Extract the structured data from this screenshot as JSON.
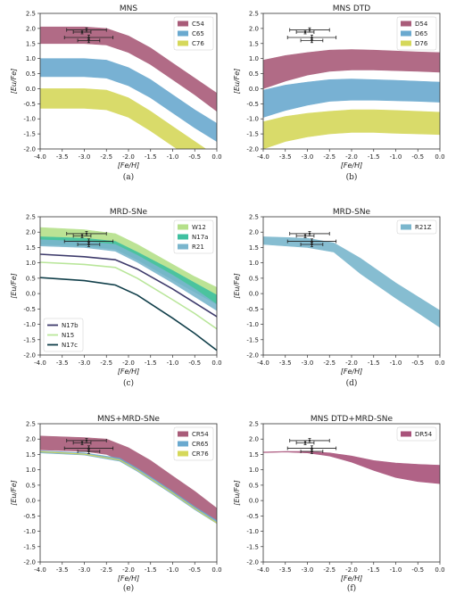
{
  "figure": {
    "panels": [
      {
        "label": "(a)",
        "title": "MNS"
      },
      {
        "label": "(b)",
        "title": "MNS DTD"
      },
      {
        "label": "(c)",
        "title": "MRD-SNe"
      },
      {
        "label": "(d)",
        "title": "MRD-SNe"
      },
      {
        "label": "(e)",
        "title": "MNS+MRD-SNe"
      },
      {
        "label": "(f)",
        "title": "MNS DTD+MRD-SNe"
      }
    ],
    "colors": {
      "maroon": "#a95c79",
      "blue": "#6aa9cf",
      "yellow": "#d5d85a",
      "lightgreen": "#b5e08a",
      "teal": "#3fc0a0",
      "steel": "#7ab6cd",
      "navy": "#3d3a6b",
      "palegreen": "#b9e69a",
      "darkteal": "#113f4a",
      "dr": "#a8527a"
    }
  },
  "chart_data": [
    {
      "type": "area",
      "title": "MNS",
      "xlabel": "[Fe/H]",
      "ylabel": "[Eu/Fe]",
      "xlim": [
        -4.0,
        0.0
      ],
      "ylim": [
        -2.0,
        2.5
      ],
      "xticks": [
        "-4.0",
        "-3.5",
        "-3.0",
        "-2.5",
        "-2.0",
        "-1.5",
        "-1.0",
        "-0.5",
        "0.0"
      ],
      "yticks": [
        "-2.0",
        "-1.5",
        "-1.0",
        "-0.5",
        "0.0",
        "0.5",
        "1.0",
        "1.5",
        "2.0",
        "2.5"
      ],
      "legend": "top-right",
      "bands": [
        {
          "name": "C54",
          "color": "maroon",
          "x": [
            -4.0,
            -3.0,
            -2.5,
            -2.0,
            -1.5,
            -1.0,
            -0.5,
            0.0
          ],
          "upper": [
            2.05,
            2.05,
            2.0,
            1.75,
            1.35,
            0.85,
            0.35,
            -0.15
          ],
          "lower": [
            1.5,
            1.5,
            1.45,
            1.2,
            0.8,
            0.3,
            -0.2,
            -0.75
          ]
        },
        {
          "name": "C65",
          "color": "blue",
          "x": [
            -4.0,
            -3.0,
            -2.5,
            -2.0,
            -1.5,
            -1.0,
            -0.5,
            0.0
          ],
          "upper": [
            1.0,
            1.0,
            0.95,
            0.7,
            0.3,
            -0.2,
            -0.7,
            -1.15
          ],
          "lower": [
            0.4,
            0.4,
            0.35,
            0.1,
            -0.3,
            -0.8,
            -1.3,
            -1.75
          ]
        },
        {
          "name": "C76",
          "color": "yellow",
          "x": [
            -4.0,
            -3.0,
            -2.5,
            -2.0,
            -1.5,
            -1.0,
            -0.5,
            0.0
          ],
          "upper": [
            0.0,
            0.0,
            -0.05,
            -0.3,
            -0.75,
            -1.25,
            -1.75,
            -2.25
          ],
          "lower": [
            -0.65,
            -0.65,
            -0.7,
            -0.95,
            -1.4,
            -1.9,
            -2.4,
            -2.9
          ]
        }
      ],
      "lines": [],
      "observations": [
        {
          "x": -2.95,
          "y": 1.95,
          "xerr": 0.45,
          "yerr": 0.07
        },
        {
          "x": -3.05,
          "y": 1.88,
          "xerr": 0.2,
          "yerr": 0.06
        },
        {
          "x": -2.9,
          "y": 1.7,
          "xerr": 0.55,
          "yerr": 0.08
        },
        {
          "x": -2.9,
          "y": 1.6,
          "xerr": 0.25,
          "yerr": 0.07
        }
      ]
    },
    {
      "type": "area",
      "title": "MNS DTD",
      "xlabel": "[Fe/H]",
      "ylabel": "[Eu/Fe]",
      "xlim": [
        -4.0,
        0.0
      ],
      "ylim": [
        -2.0,
        2.5
      ],
      "xticks": [
        "-4.0",
        "-3.5",
        "-3.0",
        "-2.5",
        "-2.0",
        "-1.5",
        "-1.0",
        "-0.5",
        "0.0"
      ],
      "yticks": [
        "-2.0",
        "-1.5",
        "-1.0",
        "-0.5",
        "0.0",
        "0.5",
        "1.0",
        "1.5",
        "2.0",
        "2.5"
      ],
      "legend": "top-right",
      "bands": [
        {
          "name": "D54",
          "color": "maroon",
          "x": [
            -4.0,
            -3.5,
            -3.0,
            -2.5,
            -2.0,
            -1.5,
            -1.0,
            -0.5,
            0.0
          ],
          "upper": [
            0.95,
            1.1,
            1.2,
            1.28,
            1.3,
            1.28,
            1.25,
            1.22,
            1.2
          ],
          "lower": [
            0.0,
            0.25,
            0.45,
            0.58,
            0.62,
            0.62,
            0.6,
            0.58,
            0.55
          ]
        },
        {
          "name": "D65",
          "color": "blue",
          "x": [
            -4.0,
            -3.5,
            -3.0,
            -2.5,
            -2.0,
            -1.5,
            -1.0,
            -0.5,
            0.0
          ],
          "upper": [
            -0.05,
            0.12,
            0.22,
            0.3,
            0.32,
            0.3,
            0.28,
            0.25,
            0.22
          ],
          "lower": [
            -0.95,
            -0.72,
            -0.55,
            -0.42,
            -0.38,
            -0.38,
            -0.4,
            -0.42,
            -0.45
          ]
        },
        {
          "name": "D76",
          "color": "yellow",
          "x": [
            -4.0,
            -3.5,
            -3.0,
            -2.5,
            -2.0,
            -1.5,
            -1.0,
            -0.5,
            0.0
          ],
          "upper": [
            -1.1,
            -0.92,
            -0.82,
            -0.75,
            -0.7,
            -0.7,
            -0.72,
            -0.75,
            -0.78
          ],
          "lower": [
            -2.0,
            -1.75,
            -1.6,
            -1.5,
            -1.45,
            -1.45,
            -1.48,
            -1.5,
            -1.52
          ]
        }
      ],
      "lines": [],
      "observations": [
        {
          "x": -2.95,
          "y": 1.95,
          "xerr": 0.45,
          "yerr": 0.07
        },
        {
          "x": -3.05,
          "y": 1.88,
          "xerr": 0.2,
          "yerr": 0.06
        },
        {
          "x": -2.9,
          "y": 1.7,
          "xerr": 0.55,
          "yerr": 0.08
        },
        {
          "x": -2.9,
          "y": 1.6,
          "xerr": 0.25,
          "yerr": 0.07
        }
      ]
    },
    {
      "type": "area",
      "title": "MRD-SNe",
      "xlabel": "[Fe/H]",
      "ylabel": "[Eu/Fe]",
      "xlim": [
        -4.0,
        0.0
      ],
      "ylim": [
        -2.0,
        2.5
      ],
      "xticks": [
        "-4.0",
        "-3.5",
        "-3.0",
        "-2.5",
        "-2.0",
        "-1.5",
        "-1.0",
        "-0.5",
        "0.0"
      ],
      "yticks": [
        "-2.0",
        "-1.5",
        "-1.0",
        "-0.5",
        "0.0",
        "0.5",
        "1.0",
        "1.5",
        "2.0",
        "2.5"
      ],
      "legend": "top-right; lower-left",
      "bands": [
        {
          "name": "W12",
          "color": "lightgreen",
          "x": [
            -4.0,
            -3.0,
            -2.3,
            -1.8,
            -1.0,
            -0.5,
            0.0
          ],
          "upper": [
            2.15,
            2.08,
            1.95,
            1.6,
            0.95,
            0.55,
            0.2
          ],
          "lower": [
            1.6,
            1.55,
            1.45,
            1.1,
            0.45,
            0.05,
            -0.35
          ]
        },
        {
          "name": "N17a",
          "color": "teal",
          "x": [
            -4.0,
            -3.0,
            -2.3,
            -1.8,
            -1.0,
            -0.5,
            0.0
          ],
          "upper": [
            1.85,
            1.8,
            1.7,
            1.35,
            0.75,
            0.35,
            -0.05
          ],
          "lower": [
            1.6,
            1.55,
            1.45,
            1.1,
            0.45,
            0.05,
            -0.35
          ]
        },
        {
          "name": "R21",
          "color": "steel",
          "x": [
            -4.0,
            -3.0,
            -2.3,
            -1.8,
            -1.0,
            -0.5,
            0.0
          ],
          "upper": [
            1.75,
            1.7,
            1.6,
            1.25,
            0.6,
            0.15,
            -0.35
          ],
          "lower": [
            1.55,
            1.5,
            1.38,
            1.02,
            0.35,
            -0.1,
            -0.55
          ]
        }
      ],
      "lines": [
        {
          "name": "N17b",
          "color": "navy",
          "x": [
            -4.0,
            -3.0,
            -2.3,
            -1.8,
            -1.0,
            -0.5,
            0.0
          ],
          "y": [
            1.28,
            1.2,
            1.1,
            0.8,
            0.15,
            -0.3,
            -0.75
          ]
        },
        {
          "name": "N15",
          "color": "palegreen",
          "x": [
            -4.0,
            -3.0,
            -2.3,
            -1.8,
            -1.0,
            -0.5,
            0.0
          ],
          "y": [
            1.02,
            0.95,
            0.85,
            0.5,
            -0.2,
            -0.65,
            -1.15
          ]
        },
        {
          "name": "N17c",
          "color": "darkteal",
          "x": [
            -4.0,
            -3.0,
            -2.3,
            -1.8,
            -1.0,
            -0.5,
            0.0
          ],
          "y": [
            0.52,
            0.42,
            0.28,
            -0.05,
            -0.8,
            -1.3,
            -1.85
          ]
        }
      ],
      "observations": [
        {
          "x": -2.95,
          "y": 1.95,
          "xerr": 0.45,
          "yerr": 0.07
        },
        {
          "x": -3.05,
          "y": 1.88,
          "xerr": 0.2,
          "yerr": 0.06
        },
        {
          "x": -2.9,
          "y": 1.7,
          "xerr": 0.55,
          "yerr": 0.08
        },
        {
          "x": -2.9,
          "y": 1.6,
          "xerr": 0.25,
          "yerr": 0.07
        }
      ]
    },
    {
      "type": "area",
      "title": "MRD-SNe",
      "xlabel": "[Fe/H]",
      "ylabel": "[Eu/Fe]",
      "xlim": [
        -4.0,
        0.0
      ],
      "ylim": [
        -2.0,
        2.5
      ],
      "xticks": [
        "-4.0",
        "-3.5",
        "-3.0",
        "-2.5",
        "-2.0",
        "-1.5",
        "-1.0",
        "-0.5",
        "0.0"
      ],
      "yticks": [
        "-2.0",
        "-1.5",
        "-1.0",
        "-0.5",
        "0.0",
        "0.5",
        "1.0",
        "1.5",
        "2.0",
        "2.5"
      ],
      "legend": "top-right",
      "bands": [
        {
          "name": "R21Z",
          "color": "steel",
          "x": [
            -4.0,
            -3.0,
            -2.4,
            -1.8,
            -1.0,
            -0.5,
            0.0
          ],
          "upper": [
            1.85,
            1.8,
            1.65,
            1.15,
            0.35,
            -0.1,
            -0.55
          ],
          "lower": [
            1.6,
            1.5,
            1.35,
            0.65,
            -0.15,
            -0.62,
            -1.1
          ]
        }
      ],
      "lines": [],
      "observations": [
        {
          "x": -2.95,
          "y": 1.95,
          "xerr": 0.45,
          "yerr": 0.07
        },
        {
          "x": -3.05,
          "y": 1.88,
          "xerr": 0.2,
          "yerr": 0.06
        },
        {
          "x": -2.9,
          "y": 1.7,
          "xerr": 0.55,
          "yerr": 0.08
        },
        {
          "x": -2.9,
          "y": 1.6,
          "xerr": 0.25,
          "yerr": 0.07
        }
      ]
    },
    {
      "type": "area",
      "title": "MNS+MRD-SNe",
      "xlabel": "[Fe/H]",
      "ylabel": "[Eu/Fe]",
      "xlim": [
        -4.0,
        0.0
      ],
      "ylim": [
        -2.0,
        2.5
      ],
      "xticks": [
        "-4.0",
        "-3.5",
        "-3.0",
        "-2.5",
        "-2.0",
        "-1.5",
        "-1.0",
        "-0.5",
        "0.0"
      ],
      "yticks": [
        "-2.0",
        "-1.5",
        "-1.0",
        "-0.5",
        "0.0",
        "0.5",
        "1.0",
        "1.5",
        "2.0",
        "2.5"
      ],
      "legend": "top-right",
      "bands": [
        {
          "name": "CR54",
          "color": "maroon",
          "x": [
            -4.0,
            -3.0,
            -2.5,
            -2.0,
            -1.5,
            -1.0,
            -0.5,
            0.0
          ],
          "upper": [
            2.1,
            2.05,
            2.0,
            1.72,
            1.3,
            0.8,
            0.3,
            -0.25
          ],
          "lower": [
            1.65,
            1.6,
            1.5,
            1.2,
            0.78,
            0.28,
            -0.22,
            -0.65
          ]
        },
        {
          "name": "CR65",
          "color": "blue",
          "x": [
            -4.0,
            -3.0,
            -2.2,
            -1.8,
            -1.0,
            -0.5,
            0.0
          ],
          "upper": [
            1.62,
            1.55,
            1.38,
            1.05,
            0.3,
            -0.2,
            -0.65
          ],
          "lower": [
            1.55,
            1.48,
            1.28,
            0.95,
            0.2,
            -0.3,
            -0.75
          ]
        },
        {
          "name": "CR76",
          "color": "yellow",
          "x": [
            -4.0,
            -3.0,
            -2.2,
            -1.8,
            -1.0,
            -0.5,
            0.0
          ],
          "upper": [
            1.6,
            1.52,
            1.33,
            1.0,
            0.25,
            -0.25,
            -0.72
          ],
          "lower": [
            1.58,
            1.5,
            1.31,
            0.98,
            0.23,
            -0.27,
            -0.74
          ]
        }
      ],
      "lines": [],
      "observations": [
        {
          "x": -2.95,
          "y": 1.95,
          "xerr": 0.45,
          "yerr": 0.07
        },
        {
          "x": -3.05,
          "y": 1.88,
          "xerr": 0.2,
          "yerr": 0.06
        },
        {
          "x": -2.9,
          "y": 1.7,
          "xerr": 0.55,
          "yerr": 0.08
        },
        {
          "x": -2.9,
          "y": 1.6,
          "xerr": 0.25,
          "yerr": 0.07
        }
      ]
    },
    {
      "type": "area",
      "title": "MNS DTD+MRD-SNe",
      "xlabel": "[Fe/H]",
      "ylabel": "[Eu/Fe]",
      "xlim": [
        -4.0,
        0.0
      ],
      "ylim": [
        -2.0,
        2.5
      ],
      "xticks": [
        "-4.0",
        "-3.5",
        "-3.0",
        "-2.5",
        "-2.0",
        "-1.5",
        "-1.0",
        "-0.5",
        "0.0"
      ],
      "yticks": [
        "-2.0",
        "-1.5",
        "-1.0",
        "-0.5",
        "0.0",
        "0.5",
        "1.0",
        "1.5",
        "2.0",
        "2.5"
      ],
      "legend": "top-right",
      "bands": [
        {
          "name": "DR54",
          "color": "dr",
          "x": [
            -4.0,
            -3.5,
            -3.0,
            -2.5,
            -2.0,
            -1.5,
            -1.0,
            -0.5,
            0.0
          ],
          "upper": [
            1.58,
            1.6,
            1.6,
            1.55,
            1.45,
            1.3,
            1.22,
            1.18,
            1.15
          ],
          "lower": [
            1.56,
            1.58,
            1.55,
            1.45,
            1.25,
            0.98,
            0.75,
            0.62,
            0.55
          ]
        }
      ],
      "lines": [],
      "observations": [
        {
          "x": -2.95,
          "y": 1.95,
          "xerr": 0.45,
          "yerr": 0.07
        },
        {
          "x": -3.05,
          "y": 1.88,
          "xerr": 0.2,
          "yerr": 0.06
        },
        {
          "x": -2.9,
          "y": 1.7,
          "xerr": 0.55,
          "yerr": 0.08
        },
        {
          "x": -2.9,
          "y": 1.6,
          "xerr": 0.25,
          "yerr": 0.07
        }
      ]
    }
  ]
}
